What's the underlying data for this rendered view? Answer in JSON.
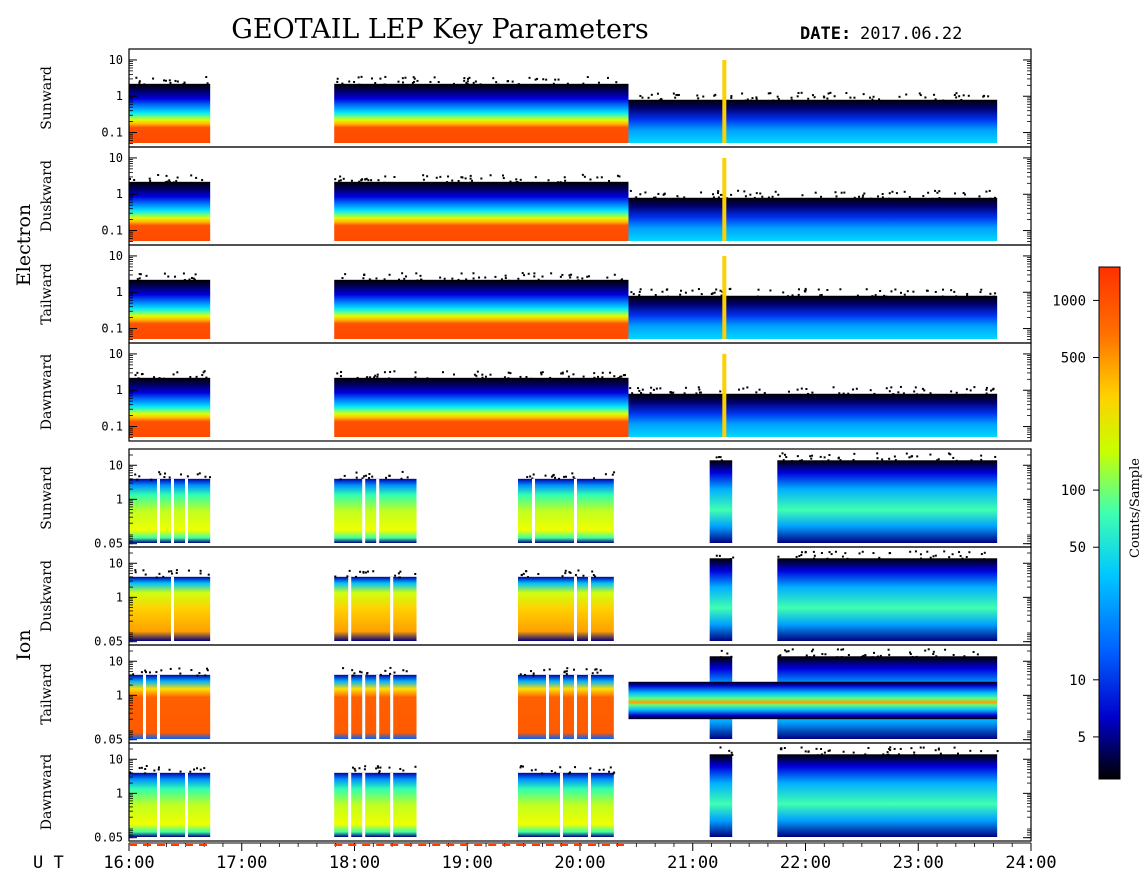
{
  "title": "GEOTAIL LEP Key Parameters",
  "date_label": "DATE:",
  "date_value": "2017.06.22",
  "x_axis_label": "U T",
  "colorbar_label": "Counts/Sample",
  "colors": {
    "frame": "#000000",
    "accent_red": "#ff3b00",
    "background": "#ffffff"
  },
  "chart_data": {
    "type": "heatmap",
    "x": {
      "unit": "UT hours",
      "range": [
        16,
        24
      ],
      "ticks": [
        16,
        17,
        18,
        19,
        20,
        21,
        22,
        23,
        24
      ],
      "tick_labels": [
        "16:00",
        "17:00",
        "18:00",
        "19:00",
        "20:00",
        "21:00",
        "22:00",
        "23:00",
        "24:00"
      ]
    },
    "groups": [
      {
        "name": "Electron",
        "panels": [
          {
            "direction": "Sunward",
            "y_tick_labels": [
              "10",
              "1",
              "0.1"
            ],
            "y_ticks": [
              10,
              1,
              0.1
            ],
            "ylim": [
              0.04,
              20
            ]
          },
          {
            "direction": "Duskward",
            "y_tick_labels": [
              "10",
              "1",
              "0.1"
            ],
            "y_ticks": [
              10,
              1,
              0.1
            ],
            "ylim": [
              0.04,
              20
            ]
          },
          {
            "direction": "Tailward",
            "y_tick_labels": [
              "10",
              "1",
              "0.1"
            ],
            "y_ticks": [
              10,
              1,
              0.1
            ],
            "ylim": [
              0.04,
              20
            ]
          },
          {
            "direction": "Dawnward",
            "y_tick_labels": [
              "10",
              "1",
              "0.1"
            ],
            "y_ticks": [
              10,
              1,
              0.1
            ],
            "ylim": [
              0.04,
              20
            ]
          }
        ],
        "data_intervals_ut": [
          [
            16.0,
            16.72
          ],
          [
            17.82,
            20.43
          ],
          [
            20.43,
            23.7
          ]
        ]
      },
      {
        "name": "Ion",
        "panels": [
          {
            "direction": "Sunward",
            "y_tick_labels": [
              "10",
              "1",
              "0.05"
            ],
            "y_ticks": [
              10,
              1,
              0.05
            ],
            "ylim": [
              0.04,
              30
            ]
          },
          {
            "direction": "Duskward",
            "y_tick_labels": [
              "10",
              "1",
              "0.05"
            ],
            "y_ticks": [
              10,
              1,
              0.05
            ],
            "ylim": [
              0.04,
              30
            ]
          },
          {
            "direction": "Tailward",
            "y_tick_labels": [
              "10",
              "1",
              "0.05"
            ],
            "y_ticks": [
              10,
              1,
              0.05
            ],
            "ylim": [
              0.04,
              30
            ]
          },
          {
            "direction": "Dawnward",
            "y_tick_labels": [
              "10",
              "1",
              "0.05"
            ],
            "y_ticks": [
              10,
              1,
              0.05
            ],
            "ylim": [
              0.04,
              30
            ]
          }
        ],
        "data_intervals_ut": [
          [
            16.0,
            16.72
          ],
          [
            17.82,
            18.55
          ],
          [
            19.45,
            20.3
          ],
          [
            21.15,
            21.35
          ],
          [
            21.75,
            23.7
          ]
        ]
      }
    ],
    "colorbar": {
      "label": "Counts/Sample",
      "scale": "log",
      "range": [
        3,
        1500
      ],
      "ticks": [
        5,
        10,
        50,
        100,
        500,
        1000
      ],
      "tick_labels": [
        "5",
        "10",
        "50",
        "100",
        "500",
        "1000"
      ],
      "colormap": [
        "#000000",
        "#0000cc",
        "#0060ff",
        "#00c8ff",
        "#40ffb0",
        "#c8ff00",
        "#ffd000",
        "#ff7000",
        "#ff3000"
      ]
    }
  }
}
